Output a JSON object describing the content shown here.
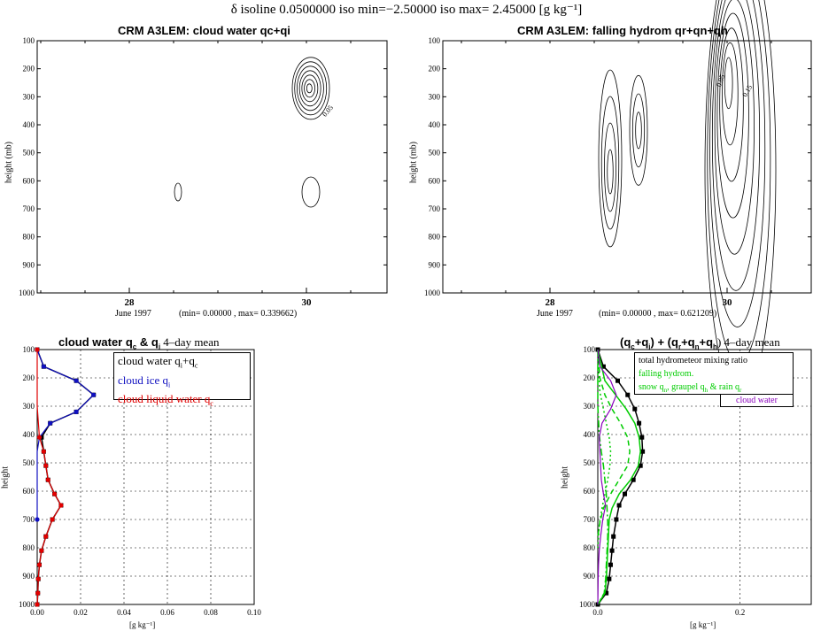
{
  "suptitle": "δ isoline 0.0500000   iso min=−2.50000   iso max= 2.45000 [g kg⁻¹]",
  "chart_data": [
    {
      "type": "contour",
      "title": "CRM A3LEM: cloud water qc+qi",
      "ylabel": "height (mb)",
      "xlabel": "June 1997",
      "x_ticks": [
        "28",
        "30"
      ],
      "y_ticks": [
        100,
        200,
        300,
        400,
        500,
        600,
        700,
        800,
        900,
        1000
      ],
      "stats": "(min= 0.00000 , max= 0.339662)",
      "contour_labels": [
        "0.05"
      ],
      "features": [
        {
          "day": 30.05,
          "p_center": 270,
          "max": 0.34
        },
        {
          "day": 30.05,
          "p_center": 640,
          "max": 0.05
        },
        {
          "day": 28.5,
          "p_center": 640,
          "max": 0.05
        }
      ]
    },
    {
      "type": "contour",
      "title": "CRM A3LEM: falling hydrom qr+qn+qh",
      "ylabel": "height (mb)",
      "xlabel": "June 1997",
      "x_ticks": [
        "28",
        "30"
      ],
      "y_ticks": [
        100,
        200,
        300,
        400,
        500,
        600,
        700,
        800,
        900,
        1000
      ],
      "stats": "(min= 0.00000 , max= 0.621209)",
      "contour_labels": [
        "0.05",
        "0.15"
      ],
      "features": [
        {
          "day": 28.6,
          "p_center": 520,
          "max": 0.3
        },
        {
          "day": 28.95,
          "p_center": 420,
          "max": 0.25
        },
        {
          "day": 30.0,
          "p_center": 420,
          "max": 0.62
        }
      ]
    },
    {
      "type": "line",
      "title_parts": [
        "cloud water q",
        "c",
        " & q",
        "i",
        "  4–day mean"
      ],
      "ylabel": "height",
      "xlabel": "[g kg⁻¹]",
      "xlim": [
        0,
        0.1
      ],
      "x_ticks": [
        "0.00",
        "0.02",
        "0.04",
        "0.06",
        "0.08",
        "0.10"
      ],
      "ylim": [
        1000,
        100
      ],
      "y_ticks": [
        100,
        200,
        300,
        400,
        500,
        600,
        700,
        800,
        900,
        1000
      ],
      "legend": [
        {
          "label": "cloud water q",
          "sub": "i",
          "tail": "+q",
          "sub2": "c",
          "color": "#000000"
        },
        {
          "label": "cloud ice q",
          "sub": "i",
          "color": "#1010c0"
        },
        {
          "label": "cloud liquid water q",
          "sub": "c",
          "color": "#e00000"
        }
      ],
      "series": [
        {
          "name": "cloud water qi+qc",
          "color": "#000000",
          "p": [
            100,
            160,
            210,
            260,
            320,
            360,
            410,
            460,
            510,
            560,
            610,
            650,
            700,
            760,
            810,
            860,
            910,
            960,
            1000
          ],
          "values": [
            0.0,
            0.003,
            0.018,
            0.026,
            0.018,
            0.006,
            0.002,
            0.003,
            0.004,
            0.005,
            0.008,
            0.011,
            0.007,
            0.004,
            0.002,
            0.001,
            0.0005,
            0.0003,
            0.0
          ]
        },
        {
          "name": "cloud ice qi",
          "color": "#1010c0",
          "p": [
            100,
            160,
            210,
            260,
            320,
            360,
            410,
            460,
            510,
            560,
            610,
            650,
            700
          ],
          "values": [
            0.0,
            0.003,
            0.018,
            0.026,
            0.018,
            0.006,
            0.001,
            0.0,
            0.0,
            0.0,
            0.0,
            0.0,
            0.0
          ]
        },
        {
          "name": "cloud liquid water qc",
          "color": "#e00000",
          "p": [
            100,
            300,
            410,
            460,
            510,
            560,
            610,
            650,
            700,
            760,
            810,
            860,
            910,
            960,
            1000
          ],
          "values": [
            0.0,
            0.0,
            0.001,
            0.003,
            0.004,
            0.005,
            0.008,
            0.011,
            0.007,
            0.004,
            0.002,
            0.001,
            0.0005,
            0.0003,
            0.0
          ]
        }
      ]
    },
    {
      "type": "line",
      "title_parts": [
        "(q",
        "c",
        "+q",
        "i",
        ") + (q",
        "r",
        "+q",
        "n",
        "+q",
        "h",
        ")  4–day mean"
      ],
      "ylabel": "height",
      "xlabel": "[g kg⁻¹]",
      "xlim": [
        0,
        0.3
      ],
      "x_ticks": [
        "0.0",
        "0.2"
      ],
      "ylim": [
        1000,
        100
      ],
      "y_ticks": [
        100,
        200,
        300,
        400,
        500,
        600,
        700,
        800,
        900,
        1000
      ],
      "legend": [
        {
          "label": "total hydrometeor mixing ratio",
          "color": "#000000"
        },
        {
          "label": "falling hydrom.",
          "color": "#00cc00"
        },
        {
          "label": "snow q",
          "sub": "n",
          "tail": ", graupel q",
          "sub2": "h",
          "tail2": " & rain q",
          "sub3": "r",
          "color": "#00cc00"
        },
        {
          "label": "cloud water",
          "color": "#8800bb"
        }
      ],
      "series": [
        {
          "name": "total hydrometeor mixing ratio",
          "color": "#000000",
          "p": [
            100,
            160,
            210,
            260,
            310,
            360,
            410,
            460,
            510,
            560,
            610,
            650,
            700,
            760,
            810,
            860,
            910,
            960,
            1000
          ],
          "values": [
            0.0,
            0.008,
            0.028,
            0.042,
            0.052,
            0.058,
            0.062,
            0.063,
            0.06,
            0.05,
            0.038,
            0.03,
            0.026,
            0.022,
            0.02,
            0.018,
            0.016,
            0.012,
            0.0
          ]
        },
        {
          "name": "falling hydrom.",
          "color": "#00cc00",
          "p": [
            100,
            210,
            260,
            310,
            360,
            410,
            460,
            510,
            560,
            610,
            660,
            700,
            760,
            810,
            860,
            910,
            960,
            1000
          ],
          "values": [
            0.0,
            0.01,
            0.025,
            0.04,
            0.052,
            0.058,
            0.06,
            0.057,
            0.046,
            0.03,
            0.02,
            0.016,
            0.015,
            0.014,
            0.013,
            0.012,
            0.01,
            0.0
          ]
        },
        {
          "name": "snow qn",
          "color": "#00cc00",
          "dash": "6,4",
          "p": [
            100,
            200,
            260,
            310,
            360,
            410,
            460,
            510,
            560,
            610,
            660,
            710,
            760
          ],
          "values": [
            0.0,
            0.003,
            0.01,
            0.02,
            0.032,
            0.042,
            0.045,
            0.042,
            0.03,
            0.018,
            0.008,
            0.003,
            0.0
          ]
        },
        {
          "name": "graupel qh",
          "color": "#00cc00",
          "dash": "2,3",
          "p": [
            100,
            250,
            310,
            360,
            410,
            460,
            510,
            560,
            610,
            660,
            720,
            800
          ],
          "values": [
            0.0,
            0.003,
            0.008,
            0.012,
            0.016,
            0.018,
            0.017,
            0.014,
            0.01,
            0.006,
            0.002,
            0.0
          ]
        },
        {
          "name": "rain qr",
          "color": "#00cc00",
          "dash": "8,3,2,3",
          "p": [
            100,
            300,
            400,
            460,
            510,
            560,
            610,
            660,
            710,
            760,
            810,
            860,
            910,
            960,
            1000
          ],
          "values": [
            0.0,
            0.0,
            0.002,
            0.005,
            0.008,
            0.01,
            0.012,
            0.013,
            0.014,
            0.014,
            0.013,
            0.012,
            0.011,
            0.009,
            0.0
          ]
        },
        {
          "name": "cloud water",
          "color": "#8800bb",
          "p": [
            100,
            160,
            210,
            260,
            310,
            360,
            410,
            460,
            510,
            560,
            610,
            650,
            700,
            760,
            810,
            860,
            910,
            960,
            1000
          ],
          "values": [
            0.0,
            0.003,
            0.018,
            0.026,
            0.018,
            0.006,
            0.002,
            0.003,
            0.004,
            0.005,
            0.008,
            0.011,
            0.007,
            0.004,
            0.002,
            0.001,
            0.0005,
            0.0003,
            0.0
          ]
        }
      ]
    }
  ]
}
